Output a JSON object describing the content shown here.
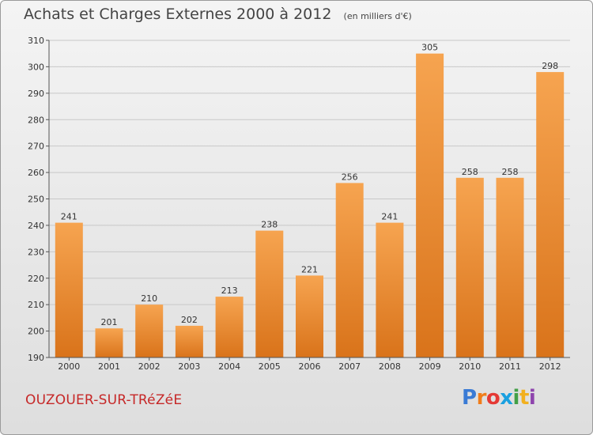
{
  "header": {
    "title": "Achats et Charges Externes 2000 à 2012",
    "subtitle": "(en milliers d'€)"
  },
  "footer": {
    "commune": "OUZOUER-SUR-TRéZéE",
    "brand": "Proxiti"
  },
  "colors": {
    "bar_top": "#f6a450",
    "bar_bottom": "#d9731a",
    "grid": "#c8c8c8",
    "commune_text": "#c62828"
  },
  "chart_data": {
    "type": "bar",
    "title": "Achats et Charges Externes 2000 à 2012",
    "subtitle": "(en milliers d'€)",
    "categories": [
      "2000",
      "2001",
      "2002",
      "2003",
      "2004",
      "2005",
      "2006",
      "2007",
      "2008",
      "2009",
      "2010",
      "2011",
      "2012"
    ],
    "values": [
      241,
      201,
      210,
      202,
      213,
      238,
      221,
      256,
      241,
      305,
      258,
      258,
      298
    ],
    "ylim": [
      190,
      310
    ],
    "yticks": [
      190,
      200,
      210,
      220,
      230,
      240,
      250,
      260,
      270,
      280,
      290,
      300,
      310
    ],
    "grid": true,
    "data_labels": true
  }
}
